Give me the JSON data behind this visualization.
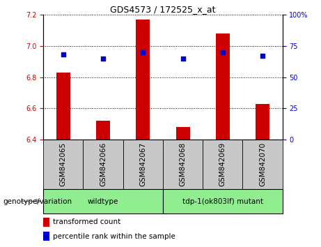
{
  "title": "GDS4573 / 172525_x_at",
  "samples": [
    "GSM842065",
    "GSM842066",
    "GSM842067",
    "GSM842068",
    "GSM842069",
    "GSM842070"
  ],
  "bar_values": [
    6.83,
    6.52,
    7.17,
    6.48,
    7.08,
    6.63
  ],
  "percentile_values": [
    68,
    65,
    70,
    65,
    70,
    67
  ],
  "ylim_left": [
    6.4,
    7.2
  ],
  "ylim_right": [
    0,
    100
  ],
  "yticks_left": [
    6.4,
    6.6,
    6.8,
    7.0,
    7.2
  ],
  "yticks_right": [
    0,
    25,
    50,
    75,
    100
  ],
  "ytick_labels_right": [
    "0",
    "25",
    "50",
    "75",
    "100%"
  ],
  "bar_color": "#cc0000",
  "dot_color": "#0000cc",
  "bar_width": 0.35,
  "legend_items": [
    {
      "label": "transformed count",
      "color": "#cc0000"
    },
    {
      "label": "percentile rank within the sample",
      "color": "#0000cc"
    }
  ],
  "genotype_label": "genotype/variation",
  "grid_linestyle": "dotted",
  "background_xticklabels": "#c8c8c8",
  "background_group": "#90ee90",
  "group1_label": "wildtype",
  "group2_label": "tdp-1(ok803lf) mutant",
  "title_fontsize": 9,
  "tick_fontsize": 7,
  "label_fontsize": 7.5,
  "legend_fontsize": 7.5
}
